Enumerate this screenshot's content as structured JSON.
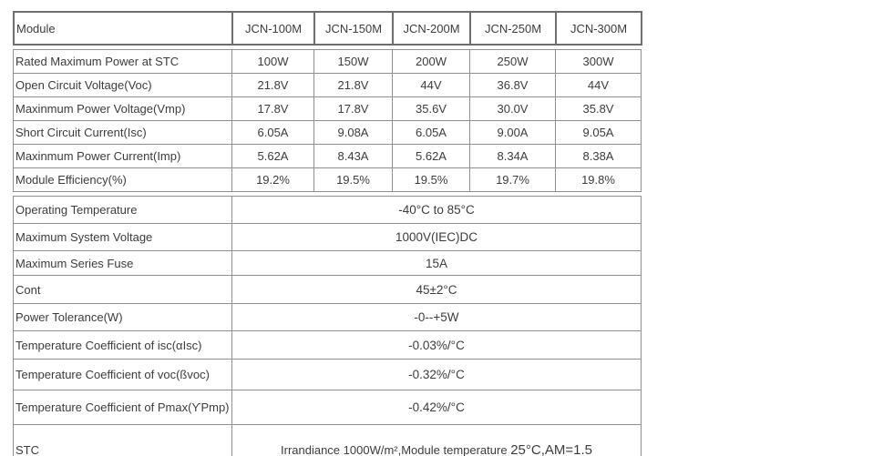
{
  "columns": [
    "Module",
    "JCN-100M",
    "JCN-150M",
    "JCN-200M",
    "JCN-250M",
    "JCN-300M"
  ],
  "spec_rows": [
    {
      "label": "Rated Maximum Power at STC",
      "values": [
        "100W",
        "150W",
        "200W",
        "250W",
        "300W"
      ]
    },
    {
      "label": "Open Circuit Voltage(Voc)",
      "values": [
        "21.8V",
        "21.8V",
        "44V",
        "36.8V",
        "44V"
      ]
    },
    {
      "label": "Maxinmum Power Voltage(Vmp)",
      "values": [
        "17.8V",
        "17.8V",
        "35.6V",
        "30.0V",
        "35.8V"
      ]
    },
    {
      "label": "Short Circuit Current(Isc)",
      "values": [
        "6.05A",
        "9.08A",
        "6.05A",
        "9.00A",
        "9.05A"
      ]
    },
    {
      "label": "Maxinmum Power Current(Imp)",
      "values": [
        "5.62A",
        "8.43A",
        "5.62A",
        "8.34A",
        "8.38A"
      ]
    },
    {
      "label": "Module Efficiency(%)",
      "values": [
        "19.2%",
        "19.5%",
        "19.5%",
        "19.7%",
        "19.8%"
      ]
    }
  ],
  "merged_rows": [
    {
      "label": "Operating Temperature",
      "value": "-40°C to 85°C"
    },
    {
      "label": "Maximum System Voltage",
      "value": "1000V(IEC)DC"
    },
    {
      "label": "Maximum Series Fuse",
      "value": "15A"
    },
    {
      "label": "Cont",
      "value": "45±2°C"
    },
    {
      "label": "Power Tolerance(W)",
      "value": "-0--+5W"
    },
    {
      "label": "Temperature Coefficient of isc(αIsc)",
      "value": "-0.03%/°C"
    },
    {
      "label": "Temperature Coefficient of voc(ßvoc)",
      "value": "-0.32%/°C"
    },
    {
      "label": "Temperature Coefficient of Pmax(ϒPmp)",
      "value": "-0.42%/°C"
    }
  ],
  "stc_row": {
    "label": "STC",
    "value_normal": "Irrandiance 1000W/m²,Module temperature ",
    "value_large": "25°C,AM=1.5"
  }
}
